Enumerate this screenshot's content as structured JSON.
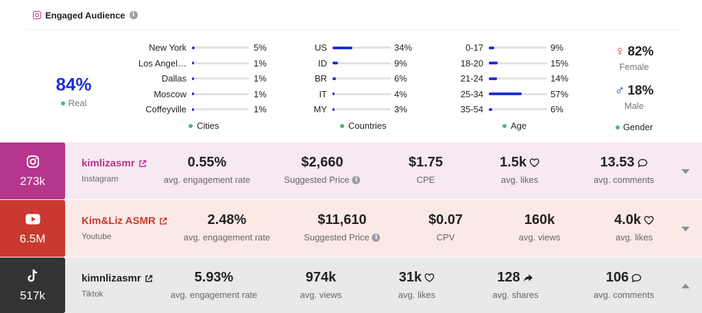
{
  "header": {
    "title": "Engaged Audience"
  },
  "real": {
    "value": "84%",
    "label": "Real"
  },
  "cities": {
    "legend": "Cities",
    "items": [
      {
        "label": "New York",
        "pct": "5%",
        "share": 0.05
      },
      {
        "label": "Los Angel…",
        "pct": "1%",
        "share": 0.01
      },
      {
        "label": "Dallas",
        "pct": "1%",
        "share": 0.01
      },
      {
        "label": "Moscow",
        "pct": "1%",
        "share": 0.01
      },
      {
        "label": "Coffeyville",
        "pct": "1%",
        "share": 0.01
      }
    ]
  },
  "countries": {
    "legend": "Countries",
    "items": [
      {
        "label": "US",
        "pct": "34%",
        "share": 0.34
      },
      {
        "label": "ID",
        "pct": "9%",
        "share": 0.09
      },
      {
        "label": "BR",
        "pct": "6%",
        "share": 0.06
      },
      {
        "label": "IT",
        "pct": "4%",
        "share": 0.04
      },
      {
        "label": "MY",
        "pct": "3%",
        "share": 0.03
      }
    ]
  },
  "age": {
    "legend": "Age",
    "items": [
      {
        "label": "0-17",
        "pct": "9%",
        "share": 0.09
      },
      {
        "label": "18-20",
        "pct": "15%",
        "share": 0.15
      },
      {
        "label": "21-24",
        "pct": "14%",
        "share": 0.14
      },
      {
        "label": "25-34",
        "pct": "57%",
        "share": 0.57
      },
      {
        "label": "35-54",
        "pct": "6%",
        "share": 0.06
      }
    ]
  },
  "gender": {
    "female_value": "82%",
    "female_label": "Female",
    "male_value": "18%",
    "male_label": "Male",
    "legend": "Gender",
    "female_symbol": "♀",
    "male_symbol": "♂"
  },
  "platforms": {
    "instagram": {
      "count": "273k",
      "name": "kimlizasmr",
      "platform": "Instagram",
      "name_color": "#b6358d",
      "m1_value": "0.55%",
      "m1_label": "avg. engagement rate",
      "m2_value": "$2,660",
      "m2_label": "Suggested Price",
      "m3_value": "$1.75",
      "m3_label": "CPE",
      "m4_value": "1.5k",
      "m4_label": "avg. likes",
      "m4_icon": "heart-icon",
      "m5_value": "13.53",
      "m5_label": "avg. comments",
      "m5_icon": "comment-icon"
    },
    "youtube": {
      "count": "6.5M",
      "name": "Kim&Liz ASMR",
      "platform": "Youtube",
      "name_color": "#c9392f",
      "m1_value": "2.48%",
      "m1_label": "avg. engagement rate",
      "m2_value": "$11,610",
      "m2_label": "Suggested Price",
      "m3_value": "$0.07",
      "m3_label": "CPV",
      "m4_value": "160k",
      "m4_label": "avg. views",
      "m5_value": "4.0k",
      "m5_label": "avg. likes",
      "m5_icon": "heart-icon"
    },
    "tiktok": {
      "count": "517k",
      "name": "kimnlizasmr",
      "platform": "Tiktok",
      "name_color": "#222222",
      "m1_value": "5.93%",
      "m1_label": "avg. engagement rate",
      "m2_value": "974k",
      "m2_label": "avg. views",
      "m3_value": "31k",
      "m3_label": "avg. likes",
      "m3_icon": "heart-icon",
      "m4_value": "128",
      "m4_label": "avg. shares",
      "m4_icon": "share-arrow-icon",
      "m5_value": "106",
      "m5_label": "avg. comments",
      "m5_icon": "comment-icon"
    }
  },
  "colors": {
    "accent_blue": "#1d2fd6",
    "legend_green": "#4cb87a",
    "female_red": "#e0344c"
  }
}
